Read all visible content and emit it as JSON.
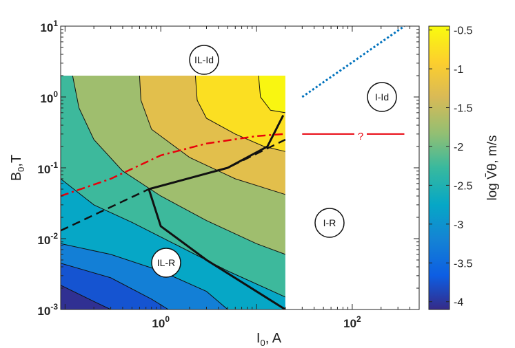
{
  "chart_data": {
    "type": "heatmap",
    "title": "",
    "xlabel": "I",
    "xlabel_sub": "0",
    "xlabel_unit": ", A",
    "ylabel": "B",
    "ylabel_sub": "0",
    "ylabel_unit": ",T",
    "colorbar_label": "log V̄θ, m/s",
    "x_scale": "log",
    "y_scale": "log",
    "xlim": [
      0.09,
      500
    ],
    "ylim": [
      0.001,
      10
    ],
    "x_ticks": [
      {
        "base": "10",
        "exp": "0"
      },
      {
        "base": "10",
        "exp": "2"
      }
    ],
    "y_ticks": [
      {
        "base": "10",
        "exp": "-3"
      },
      {
        "base": "10",
        "exp": "-2"
      },
      {
        "base": "10",
        "exp": "-1"
      },
      {
        "base": "10",
        "exp": "0"
      },
      {
        "base": "10",
        "exp": "1"
      }
    ],
    "colorbar_ticks": [
      "-0.5",
      "-1",
      "-1.5",
      "-2",
      "-2.5",
      "-3",
      "-3.5",
      "-4"
    ],
    "colorbar_range": [
      -4.1,
      -0.45
    ],
    "heatmap_extent": {
      "x": [
        0.09,
        20
      ],
      "y": [
        0.001,
        2
      ]
    },
    "contour_levels": [
      -4,
      -3.5,
      -3,
      -2.5,
      -2,
      -1.5,
      -1
    ],
    "regions": [
      "IL-Id",
      "I-Id",
      "IL-R",
      "I-R"
    ],
    "question_mark": "?",
    "lines": [
      {
        "style": "solid-black",
        "points": [
          [
            0.75,
            0.05
          ],
          [
            5,
            0.1
          ],
          [
            13,
            0.2
          ],
          [
            19,
            0.55
          ]
        ]
      },
      {
        "style": "solid-black",
        "points": [
          [
            0.75,
            0.05
          ],
          [
            1,
            0.015
          ],
          [
            3,
            0.005
          ],
          [
            20,
            0.001
          ]
        ]
      },
      {
        "style": "dashed-black",
        "points": [
          [
            0.09,
            0.013
          ],
          [
            0.75,
            0.05
          ],
          [
            5,
            0.1
          ],
          [
            20,
            0.25
          ]
        ]
      },
      {
        "style": "dashdot-red",
        "points": [
          [
            0.09,
            0.04
          ],
          [
            0.3,
            0.07
          ],
          [
            1,
            0.15
          ],
          [
            3,
            0.22
          ],
          [
            10,
            0.28
          ],
          [
            19,
            0.3
          ]
        ]
      },
      {
        "style": "solid-red",
        "points": [
          [
            30,
            0.3
          ],
          [
            350,
            0.3
          ]
        ]
      },
      {
        "style": "dotted-blue",
        "points": [
          [
            30,
            1
          ],
          [
            350,
            10
          ]
        ]
      }
    ]
  }
}
